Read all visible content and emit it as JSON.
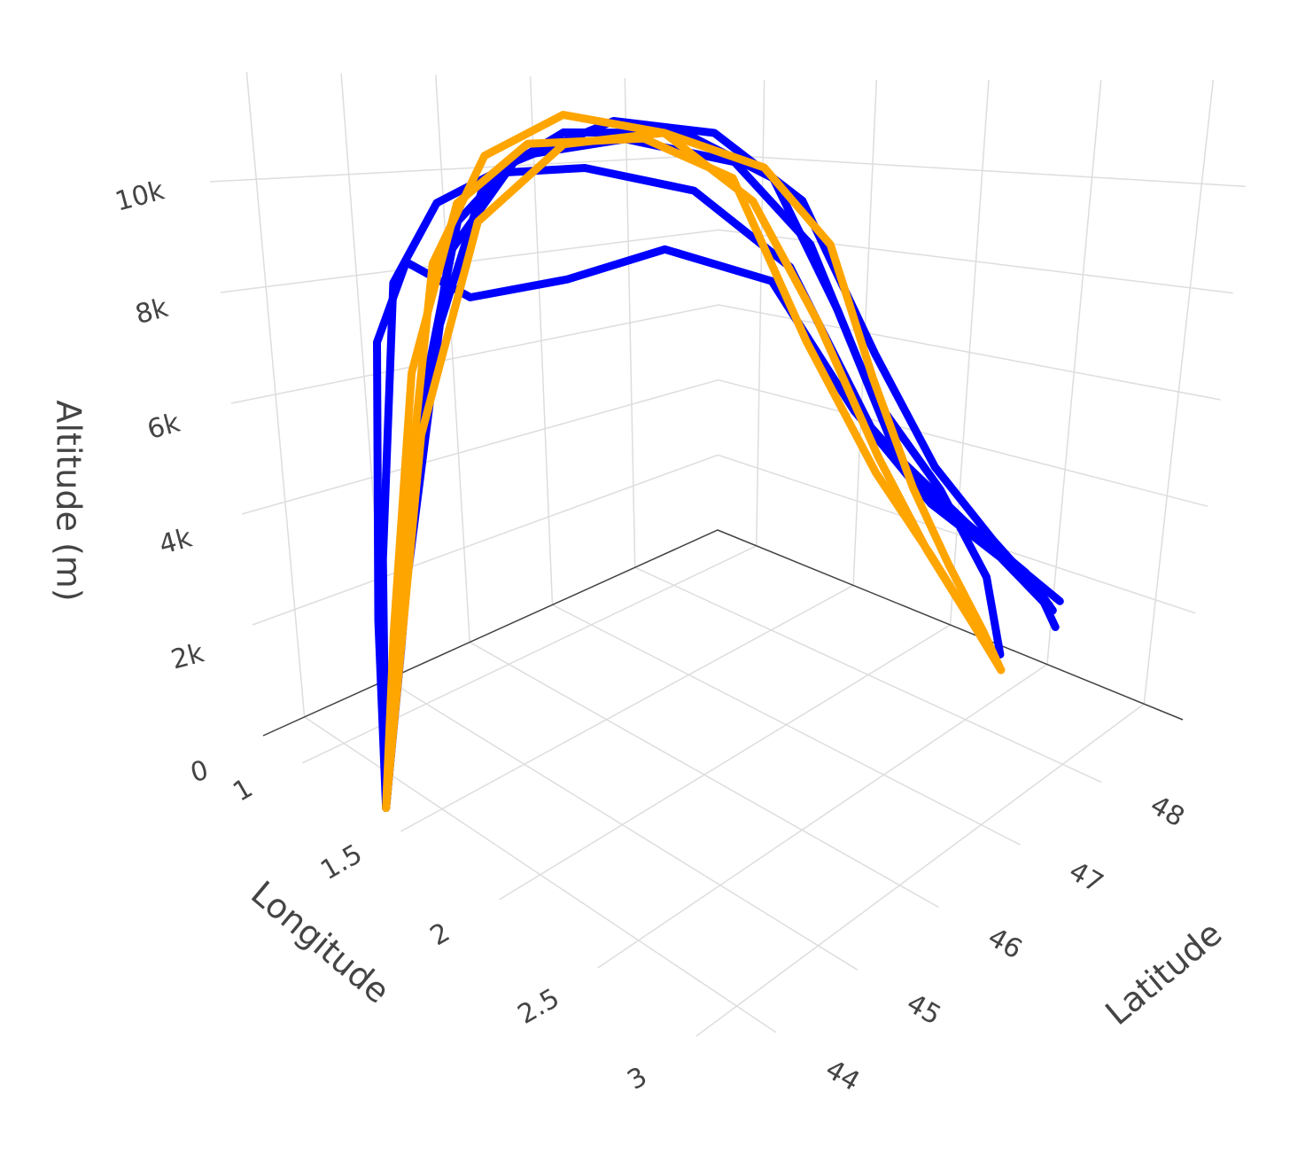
{
  "chart_data": {
    "type": "line3d",
    "x_title": "Longitude",
    "y_title": "Latitude",
    "z_title": "Altitude (m)",
    "xlim": [
      0.8,
      3.2
    ],
    "ylim": [
      43.5,
      49
    ],
    "zlim": [
      0,
      12000
    ],
    "xticks": [
      1,
      1.5,
      2,
      2.5,
      3
    ],
    "yticks": [
      44,
      45,
      46,
      47,
      48
    ],
    "zticks": [
      0,
      {
        "value": 2000,
        "label": "2k"
      },
      {
        "value": 4000,
        "label": "4k"
      },
      {
        "value": 6000,
        "label": "6k"
      },
      {
        "value": 8000,
        "label": "8k"
      },
      {
        "value": 10000,
        "label": "10k"
      }
    ],
    "grid": true,
    "series": [
      {
        "color": "#0000ff",
        "x": [
          1.37,
          1.4,
          1.44,
          1.5,
          1.62,
          1.85,
          2.05,
          2.15,
          2.25,
          2.35,
          2.4,
          2.37
        ],
        "y": [
          43.63,
          43.85,
          44.15,
          44.5,
          44.9,
          45.5,
          46.2,
          46.8,
          47.3,
          47.9,
          48.4,
          48.72
        ],
        "z": [
          0,
          2500,
          6500,
          9500,
          10600,
          10900,
          10500,
          9000,
          6200,
          4200,
          2200,
          300
        ]
      },
      {
        "color": "#0000ff",
        "x": [
          1.37,
          1.42,
          1.48,
          1.55,
          1.7,
          1.95,
          2.1,
          2.2,
          2.3,
          2.45,
          2.55,
          2.6
        ],
        "y": [
          43.63,
          43.9,
          44.3,
          44.7,
          45.2,
          45.9,
          46.5,
          47.0,
          47.5,
          48.0,
          48.5,
          48.75
        ],
        "z": [
          0,
          3500,
          7800,
          10200,
          11000,
          11000,
          10200,
          7800,
          5000,
          3600,
          2400,
          1500
        ]
      },
      {
        "color": "#0000ff",
        "x": [
          1.37,
          1.38,
          1.4,
          1.45,
          1.55,
          1.75,
          1.95,
          2.1,
          2.25,
          2.4,
          2.55,
          2.65
        ],
        "y": [
          43.63,
          43.75,
          44.0,
          44.4,
          44.8,
          45.3,
          46.0,
          46.7,
          47.3,
          47.9,
          48.4,
          48.7
        ],
        "z": [
          0,
          4000,
          8500,
          9800,
          10300,
          10400,
          10000,
          8600,
          5600,
          3800,
          2600,
          1800
        ]
      },
      {
        "color": "#0000ff",
        "x": [
          1.37,
          1.36,
          1.35,
          1.38,
          1.5,
          1.7,
          1.9,
          2.1,
          2.25,
          2.35,
          2.5,
          2.6
        ],
        "y": [
          43.63,
          43.7,
          43.9,
          44.2,
          44.6,
          45.2,
          45.8,
          46.5,
          47.1,
          47.8,
          48.3,
          48.7
        ],
        "z": [
          0,
          3000,
          7500,
          8800,
          8200,
          8500,
          9000,
          8400,
          6000,
          4000,
          2800,
          1600
        ]
      },
      {
        "color": "#0000ff",
        "x": [
          1.37,
          1.43,
          1.5,
          1.6,
          1.8,
          2.0,
          2.15,
          2.3,
          2.4,
          2.5,
          2.58,
          2.62
        ],
        "y": [
          43.63,
          44.0,
          44.4,
          44.9,
          45.5,
          46.1,
          46.7,
          47.2,
          47.7,
          48.2,
          48.6,
          48.75
        ],
        "z": [
          0,
          5000,
          9000,
          10500,
          11200,
          11000,
          9800,
          7000,
          4800,
          3200,
          2000,
          1200
        ]
      },
      {
        "color": "#ffa500",
        "x": [
          1.37,
          1.4,
          1.46,
          1.55,
          1.7,
          1.9,
          2.05,
          2.15,
          2.25,
          2.3,
          2.35,
          2.38
        ],
        "y": [
          43.63,
          43.95,
          44.3,
          44.7,
          45.2,
          45.8,
          46.4,
          46.9,
          47.4,
          47.9,
          48.4,
          48.72
        ],
        "z": [
          0,
          4200,
          8800,
          10600,
          11300,
          11000,
          9800,
          7600,
          5000,
          3000,
          1200,
          0
        ]
      },
      {
        "color": "#ffa500",
        "x": [
          1.37,
          1.39,
          1.42,
          1.5,
          1.62,
          1.85,
          2.0,
          2.1,
          2.2,
          2.28,
          2.34,
          2.38
        ],
        "y": [
          43.63,
          43.8,
          44.1,
          44.5,
          45.0,
          45.7,
          46.3,
          46.9,
          47.5,
          48.0,
          48.45,
          48.72
        ],
        "z": [
          0,
          2800,
          7000,
          9800,
          10800,
          10900,
          10200,
          7200,
          4600,
          2800,
          1100,
          0
        ]
      },
      {
        "color": "#ffa500",
        "x": [
          1.37,
          1.45,
          1.55,
          1.7,
          1.9,
          2.1,
          2.2,
          2.25,
          2.3,
          2.33,
          2.36,
          2.38
        ],
        "y": [
          43.63,
          44.1,
          44.6,
          45.2,
          45.8,
          46.4,
          46.9,
          47.3,
          47.7,
          48.1,
          48.5,
          48.72
        ],
        "z": [
          0,
          6000,
          9500,
          10800,
          11000,
          10400,
          9000,
          6500,
          4300,
          2600,
          1000,
          0
        ]
      }
    ]
  }
}
